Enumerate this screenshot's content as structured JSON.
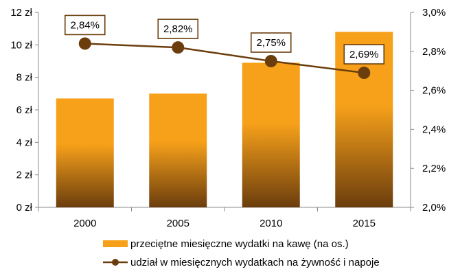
{
  "chart_data": {
    "type": "bar+line",
    "categories": [
      "2000",
      "2005",
      "2010",
      "2015"
    ],
    "series": [
      {
        "name": "przeciętne miesięczne wydatki na kawę (na os.)",
        "kind": "bar",
        "axis": "left",
        "values": [
          6.7,
          7.0,
          8.9,
          10.8
        ],
        "color": "#f7a11a",
        "color_dark": "#6b3d0d"
      },
      {
        "name": "udział w miesięcznych wydatkach na żywność i napoje",
        "kind": "line",
        "axis": "right",
        "values": [
          2.84,
          2.82,
          2.75,
          2.69
        ],
        "data_labels": [
          "2,84%",
          "2,82%",
          "2,75%",
          "2,69%"
        ],
        "color": "#6b3d0d"
      }
    ],
    "y_left": {
      "ylim": [
        0,
        12
      ],
      "ticks": [
        0,
        2,
        4,
        6,
        8,
        10,
        12
      ],
      "tick_labels": [
        "0 zł",
        "2 zł",
        "4 zł",
        "6 zł",
        "8 zł",
        "10 zł",
        "12 zł"
      ]
    },
    "y_right": {
      "ylim": [
        2.0,
        3.0
      ],
      "ticks": [
        2.0,
        2.2,
        2.4,
        2.6,
        2.8,
        3.0
      ],
      "tick_labels": [
        "2,0%",
        "2,2%",
        "2,4%",
        "2,6%",
        "2,8%",
        "3,0%"
      ]
    },
    "title": "",
    "xlabel": "",
    "grid": false,
    "legend_position": "bottom"
  }
}
